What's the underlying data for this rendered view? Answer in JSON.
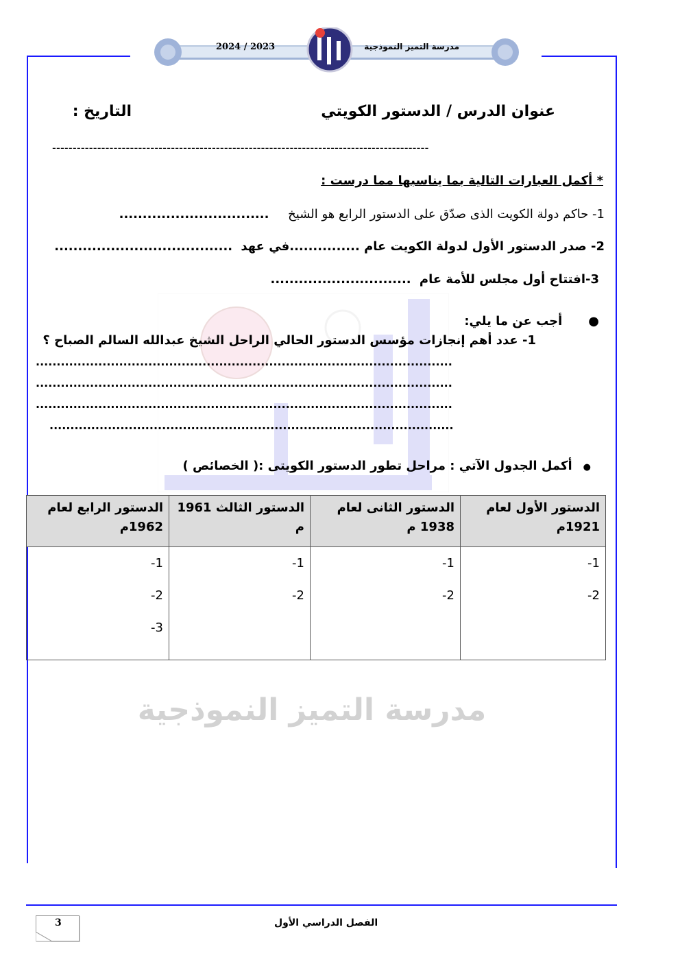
{
  "header": {
    "school_name": "مدرسة التميز النموذجية",
    "year": "2024 / 2023",
    "logo_text": "التميز"
  },
  "title": {
    "lesson": "عنوان الدرس / الدستور الكويتي",
    "date_label": "التاريخ :"
  },
  "separator": "--------------------------------------------------------------------------------------------",
  "section1": {
    "heading": "*  أكمل العبارات التالية بما يناسبها مما درست :",
    "items": [
      {
        "text": "1- حاكم دولة الكويت الذى صدّق على الدستور الرابع هو الشيخ",
        "blank": "................................"
      },
      {
        "text": "2- صدر الدستور الأول لدولة الكويت عام ...............في عهد",
        "blank": "......................................"
      },
      {
        "text": "3-افتتاح أول مجلس للأمة عام",
        "blank": ".............................."
      }
    ]
  },
  "section2": {
    "heading": "أجب عن ما يلي:",
    "question": "1-  عدد أهم إنجازات مؤسس الدستور الحالي الراحل الشيخ عبدالله السالم الصباح   ؟",
    "answer_lines": [
      "....................................................................................................",
      "....................................................................................................",
      "....................................................................................................",
      "................................................................................................."
    ]
  },
  "section3": {
    "heading": "أكمل الجدول الآتي : مراحل تطور الدستور الكويتى :( الخصائص )",
    "columns": [
      {
        "header": "الدستور الأول لعام 1921م",
        "items": [
          "1-",
          "2-"
        ]
      },
      {
        "header": "الدستور الثانى لعام 1938 م",
        "items": [
          "1-",
          "2-"
        ]
      },
      {
        "header": "الدستور الثالث 1961 م",
        "items": [
          "1-",
          "2-"
        ]
      },
      {
        "header": "الدستور الرابع لعام 1962م",
        "items": [
          "1-",
          "2-",
          "3-"
        ]
      }
    ]
  },
  "watermark": {
    "text": "مدرسة التميز النموذجية"
  },
  "footer": {
    "semester": "الفصل الدراسي الأول",
    "page_number": "3"
  },
  "colors": {
    "border": "#1a1aff",
    "table_header": "#dcdcdc",
    "watermark_blue": "#a9a9f0"
  }
}
